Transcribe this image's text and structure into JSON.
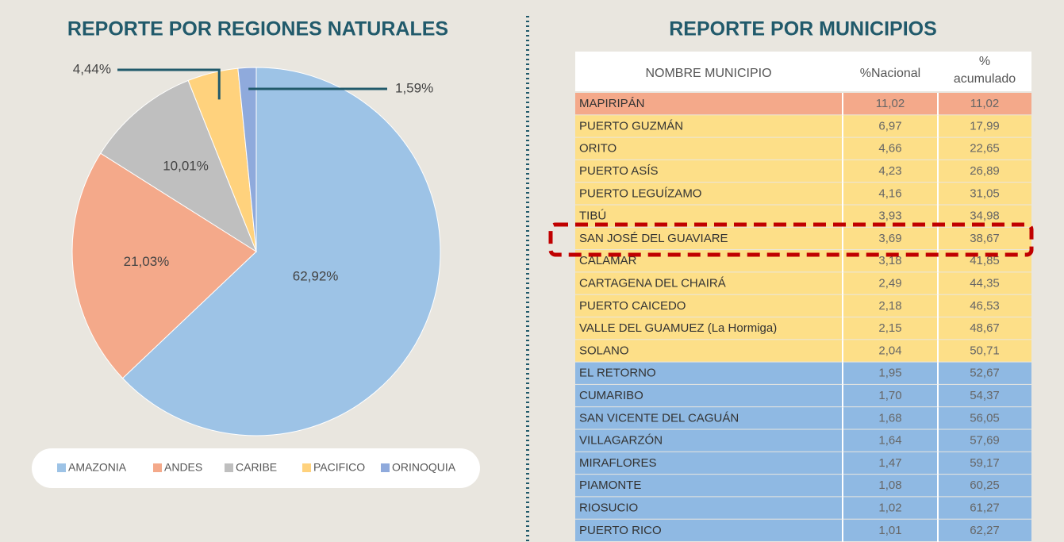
{
  "chart_data": {
    "type": "pie",
    "title": "REPORTE POR REGIONES NATURALES",
    "categories": [
      "AMAZONIA",
      "ANDES",
      "CARIBE",
      "PACIFICO",
      "ORINOQUIA"
    ],
    "values": [
      62.92,
      21.03,
      10.01,
      4.44,
      1.59
    ],
    "value_labels": [
      "62,92%",
      "21,03%",
      "10,01%",
      "4,44%",
      "1,59%"
    ],
    "colors": [
      "#9dc3e6",
      "#f4a98a",
      "#bfbfbf",
      "#ffd27d",
      "#8faadc"
    ],
    "legend": "bottom"
  },
  "table": {
    "title": "REPORTE POR MUNICIPIOS",
    "columns": [
      "NOMBRE MUNICIPIO",
      "%Nacional",
      "% acumulado"
    ],
    "rows": [
      [
        "MAPIRIPÁN",
        "11,02",
        "11,02"
      ],
      [
        "PUERTO GUZMÁN",
        "6,97",
        "17,99"
      ],
      [
        "ORITO",
        "4,66",
        "22,65"
      ],
      [
        "PUERTO ASÍS",
        "4,23",
        "26,89"
      ],
      [
        "PUERTO LEGUÍZAMO",
        "4,16",
        "31,05"
      ],
      [
        "TIBÚ",
        "3,93",
        "34,98"
      ],
      [
        "SAN JOSÉ DEL GUAVIARE",
        "3,69",
        "38,67"
      ],
      [
        "CALAMAR",
        "3,18",
        "41,85"
      ],
      [
        "CARTAGENA DEL CHAIRÁ",
        "2,49",
        "44,35"
      ],
      [
        "PUERTO CAICEDO",
        "2,18",
        "46,53"
      ],
      [
        "VALLE DEL GUAMUEZ (La Hormiga)",
        "2,15",
        "48,67"
      ],
      [
        "SOLANO",
        "2,04",
        "50,71"
      ],
      [
        "EL RETORNO",
        "1,95",
        "52,67"
      ],
      [
        "CUMARIBO",
        "1,70",
        "54,37"
      ],
      [
        "SAN VICENTE DEL CAGUÁN",
        "1,68",
        "56,05"
      ],
      [
        "VILLAGARZÓN",
        "1,64",
        "57,69"
      ],
      [
        "MIRAFLORES",
        "1,47",
        "59,17"
      ],
      [
        "PIAMONTE",
        "1,08",
        "60,25"
      ],
      [
        "RIOSUCIO",
        "1,02",
        "61,27"
      ],
      [
        "PUERTO RICO",
        "1,01",
        "62,27"
      ]
    ]
  }
}
